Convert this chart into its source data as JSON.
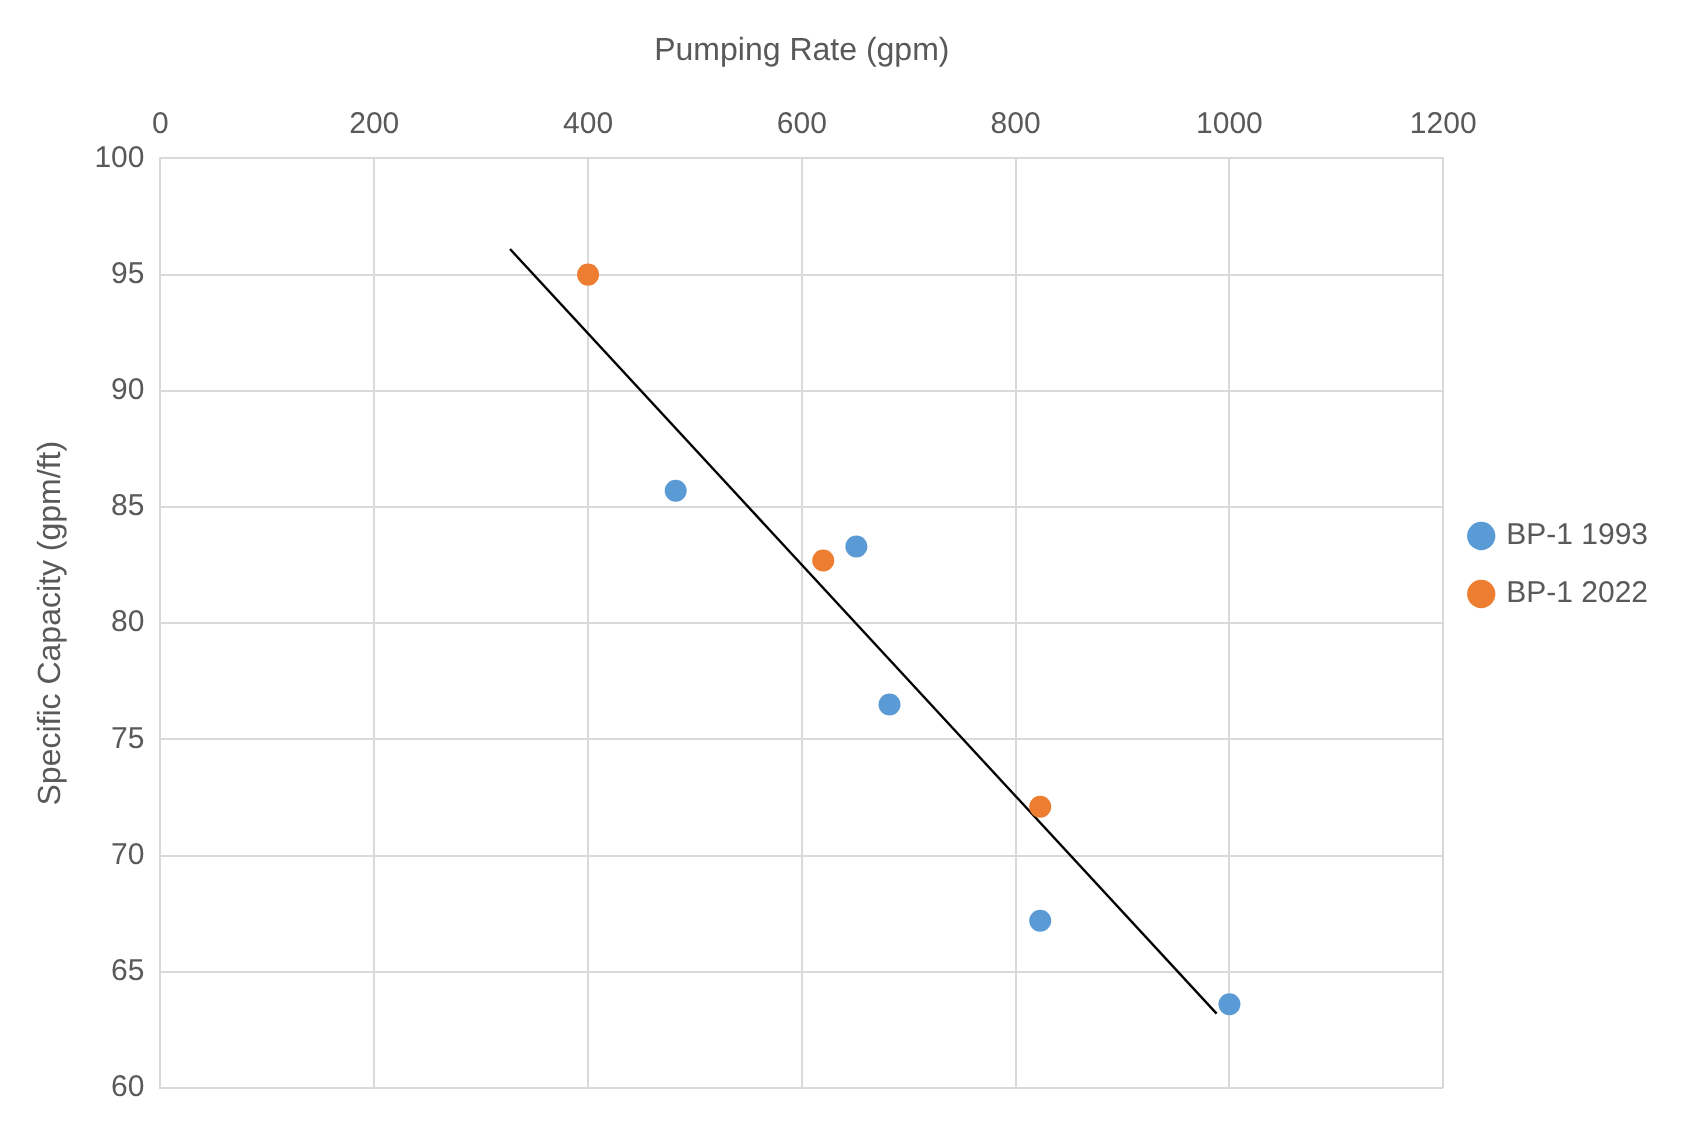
{
  "chart_data": {
    "type": "scatter",
    "xlabel": "Pumping Rate (gpm)",
    "ylabel": "Specific Capacity (gpm/ft)",
    "xlim": [
      0,
      1200
    ],
    "xticks": [
      0,
      200,
      400,
      600,
      800,
      1000,
      1200
    ],
    "ylim": [
      60,
      100
    ],
    "yticks": [
      60,
      65,
      70,
      75,
      80,
      85,
      90,
      95,
      100
    ],
    "grid": true,
    "legend": "right",
    "marker": "circle",
    "series": [
      {
        "name": "BP-1 1993",
        "color": "#5b9bd5",
        "x": [
          482,
          651,
          682,
          823,
          1000
        ],
        "values": [
          85.7,
          83.3,
          76.5,
          67.2,
          63.6
        ]
      },
      {
        "name": "BP-1 2022",
        "color": "#ed7d31",
        "x": [
          400,
          620,
          823
        ],
        "values": [
          95,
          82.7,
          72.1
        ]
      },
      {
        "type": "line",
        "color": "#000000",
        "x": [
          327,
          988
        ],
        "values": [
          96.1,
          63.2
        ],
        "marker": "none",
        "line_style": "solid"
      }
    ]
  }
}
